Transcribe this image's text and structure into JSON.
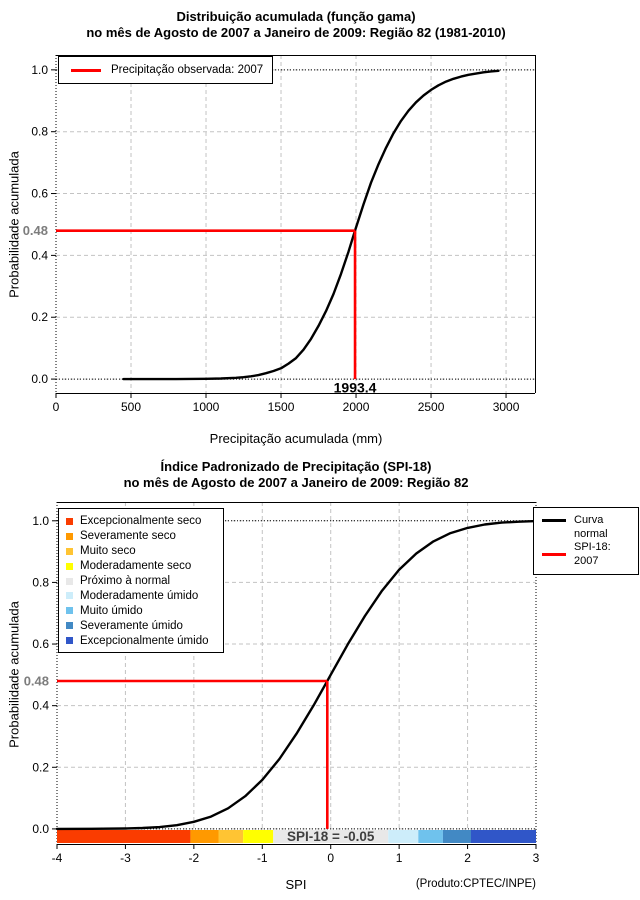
{
  "chart_data": [
    {
      "type": "line",
      "title": "Distribuição acumulada (função gama)",
      "subtitle": "no mês de Agosto de 2007 a Janeiro de 2009: Região 82 (1981-2010)",
      "xlabel": "Precipitação acumulada (mm)",
      "ylabel": "Probabilidade acumulada",
      "xlim": [
        0,
        3193
      ],
      "ylim": [
        0,
        1
      ],
      "grid": true,
      "xticks": {
        "values": [
          0,
          500,
          1000,
          1500,
          2000,
          2500,
          3000
        ],
        "labels": [
          "0",
          "500",
          "1000",
          "1500",
          "2000",
          "2500",
          "3000"
        ]
      },
      "yticks": {
        "values": [
          0,
          0.2,
          0.4,
          0.6,
          0.8,
          1
        ],
        "labels": [
          "0.0",
          "0.2",
          "0.4",
          "0.6",
          "0.8",
          "1.0"
        ]
      },
      "legend": {
        "position": "top-left",
        "entries": [
          {
            "label": "Precipitação observada: 2007",
            "color": "#FF0000",
            "type": "line"
          }
        ]
      },
      "series": [
        {
          "name": "Distribuição acumulada (função gama)",
          "color": "#000000",
          "x": [
            450,
            600,
            800,
            1000,
            1100,
            1200,
            1250,
            1300,
            1350,
            1400,
            1450,
            1500,
            1550,
            1600,
            1650,
            1700,
            1750,
            1800,
            1850,
            1900,
            1950,
            1993.4,
            2050,
            2100,
            2150,
            2200,
            2250,
            2300,
            2350,
            2400,
            2450,
            2500,
            2550,
            2600,
            2650,
            2700,
            2750,
            2800,
            2850,
            2900,
            2950
          ],
          "y": [
            0,
            0,
            0,
            0.001,
            0.002,
            0.004,
            0.006,
            0.009,
            0.013,
            0.019,
            0.026,
            0.035,
            0.05,
            0.068,
            0.095,
            0.13,
            0.172,
            0.22,
            0.275,
            0.34,
            0.412,
            0.48,
            0.565,
            0.635,
            0.695,
            0.748,
            0.795,
            0.835,
            0.868,
            0.895,
            0.917,
            0.935,
            0.95,
            0.962,
            0.971,
            0.978,
            0.984,
            0.988,
            0.992,
            0.995,
            0.997
          ]
        }
      ],
      "crosshair": {
        "x": 1993.4,
        "y": 0.48,
        "x_label": "1993.4",
        "y_label": "0.48",
        "color": "#FF0000",
        "y_label_color": "#7D7D7D",
        "x_label_color": "#000000"
      }
    },
    {
      "type": "line",
      "title": "Índice Padronizado de Precipitação (SPI-18)",
      "subtitle": "no mês de Agosto de 2007 a Janeiro de 2009: Região 82",
      "xlabel": "SPI",
      "ylabel": "Probabilidade acumulada",
      "footer": "(Produto:CPTEC/INPE)",
      "xlim": [
        -4,
        3
      ],
      "ylim": [
        0,
        1
      ],
      "grid": true,
      "xticks": {
        "values": [
          -4,
          -3,
          -2,
          -1,
          0,
          1,
          2,
          3
        ],
        "labels": [
          "-4",
          "-3",
          "-2",
          "-1",
          "0",
          "1",
          "2",
          "3"
        ]
      },
      "yticks": {
        "values": [
          0,
          0.2,
          0.4,
          0.6,
          0.8,
          1
        ],
        "labels": [
          "0.0",
          "0.2",
          "0.4",
          "0.6",
          "0.8",
          "1.0"
        ]
      },
      "legend": {
        "position": "top-right",
        "entries": [
          {
            "label": "Curva normal",
            "label_lines": [
              "Curva",
              "normal"
            ],
            "color": "#000000",
            "type": "line"
          },
          {
            "label": "SPI-18: 2007",
            "label_lines": [
              "SPI-18: 2007"
            ],
            "color": "#FF0000",
            "type": "line"
          }
        ]
      },
      "categories": [
        {
          "label": "Excepcionalmente seco",
          "color": "#FA3C00",
          "range": [
            -4,
            -2.05
          ]
        },
        {
          "label": "Severamente seco",
          "color": "#FF9900",
          "range": [
            -2.05,
            -1.64
          ]
        },
        {
          "label": "Muito seco",
          "color": "#FFC433",
          "range": [
            -1.64,
            -1.28
          ]
        },
        {
          "label": "Moderadamente seco",
          "color": "#FFFF00",
          "range": [
            -1.28,
            -0.84
          ]
        },
        {
          "label": "Próximo à normal",
          "color": "#E8E8E8",
          "range": [
            -0.84,
            0.84
          ]
        },
        {
          "label": "Moderadamente úmido",
          "color": "#CDEDFA",
          "range": [
            0.84,
            1.28
          ]
        },
        {
          "label": "Muito úmido",
          "color": "#6FC2ED",
          "range": [
            1.28,
            1.64
          ]
        },
        {
          "label": "Severamente úmido",
          "color": "#4289C4",
          "range": [
            1.64,
            2.05
          ]
        },
        {
          "label": "Excepcionalmente úmido",
          "color": "#3056C8",
          "range": [
            2.05,
            3
          ]
        }
      ],
      "series": [
        {
          "name": "Curva normal",
          "color": "#000000",
          "x": [
            -4,
            -3.5,
            -3,
            -2.75,
            -2.5,
            -2.25,
            -2,
            -1.75,
            -1.5,
            -1.25,
            -1,
            -0.75,
            -0.5,
            -0.25,
            -0.05,
            0,
            0.25,
            0.5,
            0.75,
            1,
            1.25,
            1.5,
            1.75,
            2,
            2.25,
            2.5,
            2.75,
            3
          ],
          "y": [
            0,
            0.0002,
            0.0013,
            0.003,
            0.006,
            0.012,
            0.023,
            0.04,
            0.067,
            0.106,
            0.159,
            0.227,
            0.309,
            0.401,
            0.48,
            0.5,
            0.599,
            0.691,
            0.773,
            0.841,
            0.894,
            0.933,
            0.96,
            0.977,
            0.988,
            0.994,
            0.997,
            0.999
          ]
        }
      ],
      "crosshair": {
        "x": -0.05,
        "y": 0.48,
        "y_label": "0.48",
        "annotation": "SPI-18 = -0.05",
        "color": "#FF0000",
        "y_label_color": "#7D7D7D",
        "annotation_color": "#3F3F3F"
      }
    }
  ]
}
